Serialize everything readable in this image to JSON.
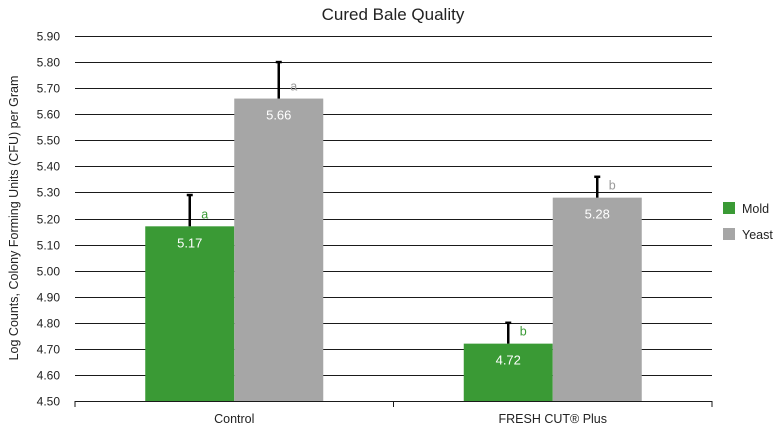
{
  "chart_data": {
    "type": "bar",
    "title": "Cured Bale Quality",
    "ylabel": "Log Counts, Colony Forming Units (CFU) per Gram",
    "xlabel": "",
    "ylim": [
      4.5,
      5.9
    ],
    "yticks": [
      "4.50",
      "4.60",
      "4.70",
      "4.80",
      "4.90",
      "5.00",
      "5.10",
      "5.20",
      "5.30",
      "5.40",
      "5.50",
      "5.60",
      "5.70",
      "5.80",
      "5.90"
    ],
    "grid": true,
    "legend_position": "right",
    "categories": [
      "Control",
      "FRESH CUT® Plus"
    ],
    "series": [
      {
        "name": "Mold",
        "color": "#3a9a35",
        "label_color": "#3a9a35",
        "values": [
          5.17,
          4.72
        ],
        "value_labels": [
          "5.17",
          "4.72"
        ],
        "error_upper": [
          5.29,
          4.8
        ],
        "significance": [
          "a",
          "b"
        ]
      },
      {
        "name": "Yeast",
        "color": "#a6a6a6",
        "label_color": "#999999",
        "values": [
          5.66,
          5.28
        ],
        "value_labels": [
          "5.66",
          "5.28"
        ],
        "error_upper": [
          5.8,
          5.36
        ],
        "significance": [
          "a",
          "b"
        ]
      }
    ]
  }
}
